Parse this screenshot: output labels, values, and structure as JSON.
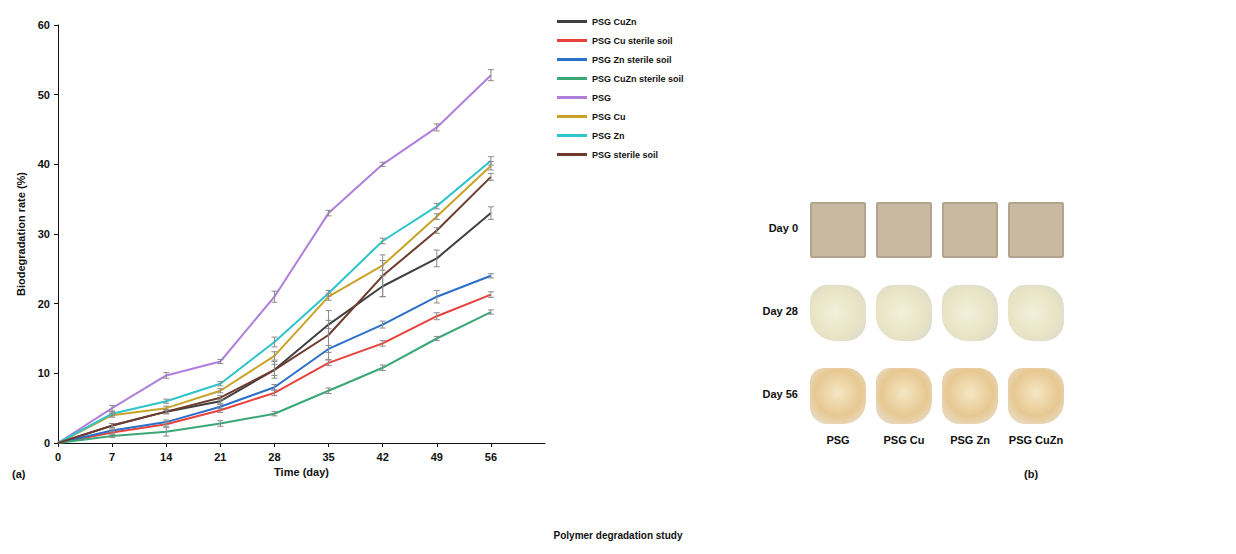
{
  "chart_data": {
    "type": "line",
    "panel_label": "(a)",
    "x_label": "Time (day)",
    "y_label": "Biodegradation rate (%)",
    "x": [
      0,
      7,
      14,
      21,
      28,
      35,
      42,
      49,
      56
    ],
    "xlim": [
      0,
      63
    ],
    "xticks": [
      0,
      7,
      14,
      21,
      28,
      35,
      42,
      49,
      56
    ],
    "ylim": [
      0,
      60
    ],
    "yticks": [
      0,
      10,
      20,
      30,
      40,
      50,
      60
    ],
    "grid": false,
    "legend": "right",
    "series": [
      {
        "name": "PSG CuZn",
        "color": "#404040",
        "values": [
          0,
          2.5,
          4.5,
          6,
          10.5,
          17,
          22.5,
          26.5,
          33
        ],
        "errors": [
          0,
          0.3,
          0.3,
          0.3,
          0.8,
          0.6,
          1.5,
          1.2,
          0.9
        ]
      },
      {
        "name": "PSG Cu sterile soil",
        "color": "#e8413c",
        "values": [
          0,
          1.5,
          2.7,
          4.7,
          7.2,
          11.5,
          14.3,
          18.2,
          21.3
        ],
        "errors": [
          0,
          0.2,
          0.3,
          0.3,
          0.4,
          0.4,
          0.4,
          0.5,
          0.4
        ]
      },
      {
        "name": "PSG Zn sterile soil",
        "color": "#2a6fc9",
        "values": [
          0,
          1.8,
          3,
          5.2,
          8,
          13.5,
          17,
          21,
          24
        ],
        "errors": [
          0,
          0.2,
          0.3,
          0.3,
          0.4,
          0.5,
          0.5,
          0.9,
          0.3
        ]
      },
      {
        "name": "PSG CuZn sterile soil",
        "color": "#3aa876",
        "values": [
          0,
          1,
          1.6,
          2.8,
          4.2,
          7.5,
          10.8,
          15,
          18.8
        ],
        "errors": [
          0,
          0.2,
          0.6,
          0.4,
          0.3,
          0.4,
          0.4,
          0.3,
          0.3
        ]
      },
      {
        "name": "PSG",
        "color": "#b07fdc",
        "values": [
          0,
          5,
          9.7,
          11.7,
          21,
          33,
          40,
          45.3,
          52.8
        ],
        "errors": [
          0,
          0.4,
          0.4,
          0.3,
          0.8,
          0.4,
          0.3,
          0.5,
          0.8
        ]
      },
      {
        "name": "PSG Cu",
        "color": "#c9a227",
        "values": [
          0,
          4,
          5,
          7.5,
          12.5,
          21,
          25.5,
          32.5,
          39.8
        ],
        "errors": [
          0,
          0.3,
          0.3,
          0.3,
          0.6,
          0.5,
          0.7,
          0.4,
          0.6
        ]
      },
      {
        "name": "PSG Zn",
        "color": "#2ec4c9",
        "values": [
          0,
          4.2,
          6,
          8.5,
          14.5,
          21.5,
          29,
          34,
          40.5
        ],
        "errors": [
          0,
          0.3,
          0.3,
          0.3,
          0.7,
          0.4,
          0.4,
          0.4,
          0.6
        ]
      },
      {
        "name": "PSG sterile soil",
        "color": "#6e3b2e",
        "values": [
          0,
          2.5,
          4.5,
          6.5,
          10.5,
          15.5,
          24,
          30.5,
          38.2
        ],
        "errors": [
          0,
          0.3,
          0.3,
          0.3,
          1.2,
          3.5,
          3.0,
          0.4,
          0.5
        ]
      }
    ]
  },
  "photo_panel": {
    "panel_label": "(b)",
    "rows": [
      "Day 0",
      "Day 28",
      "Day 56"
    ],
    "columns": [
      "PSG",
      "PSG Cu",
      "PSG Zn",
      "PSG CuZn"
    ]
  },
  "caption": "Polymer degradation study"
}
